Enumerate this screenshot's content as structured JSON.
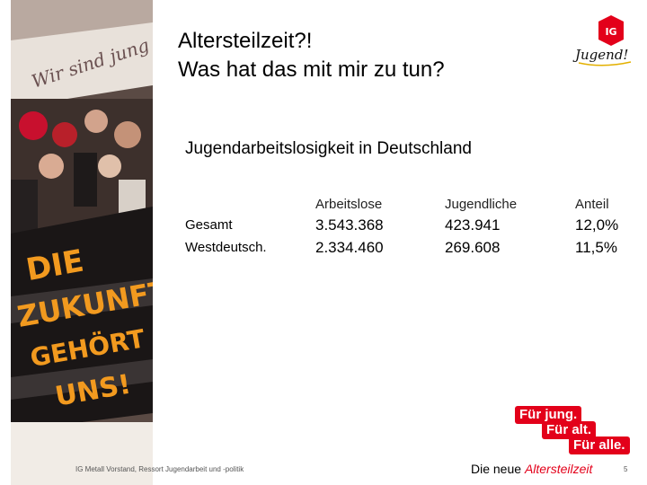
{
  "slide": {
    "title_line1": "Altersteilzeit?!",
    "title_line2": "Was hat das mit mir zu tun?",
    "subtitle": "Jugendarbeitslosigkeit in Deutschland"
  },
  "table": {
    "headers": [
      "Arbeitslose",
      "Jugendliche",
      "Anteil"
    ],
    "rows": [
      {
        "label": "Gesamt",
        "arbeitslose": "3.543.368",
        "jugendliche": "423.941",
        "anteil": "12,0%"
      },
      {
        "label": "Westdeutsch.",
        "arbeitslose": "2.334.460",
        "jugendliche": "269.608",
        "anteil": "11,5%"
      }
    ]
  },
  "photo": {
    "banner_text": "DIE ZUKUNFT GEHÖRT UNS!",
    "top_banner_text": "Wir sind jung"
  },
  "logo": {
    "emblem_text": "IG",
    "signature": "Jugend!"
  },
  "slogan": [
    "Für jung.",
    "Für alt.",
    "Für alle."
  ],
  "footer": {
    "left": "IG Metall Vorstand, Ressort Jugendarbeit und -politik",
    "center_prefix": "Die neue ",
    "center_highlight": "Altersteilzeit",
    "page": "5"
  },
  "colors": {
    "accent": "#e3001a",
    "banner_yellow": "#f29a1f"
  }
}
